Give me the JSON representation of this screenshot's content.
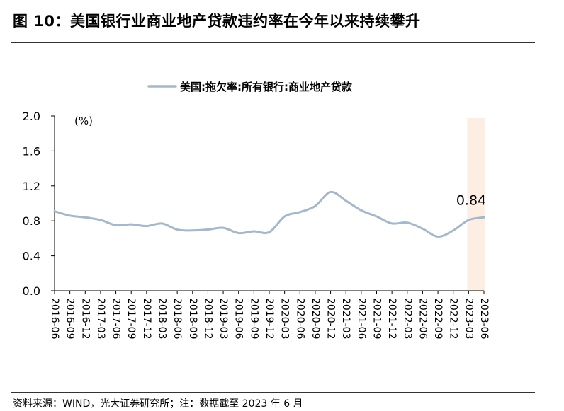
{
  "figure": {
    "title": "图 10：美国银行业商业地产贷款违约率在今年以来持续攀升",
    "source": "资料来源：WIND，光大证券研究所；注：数据截至 2023 年 6 月"
  },
  "colors": {
    "line": "#a3b8cc",
    "highlight_band": "#fdeee3",
    "axis": "#000000",
    "rule": "#333333"
  },
  "chart_data": {
    "type": "line",
    "title": "",
    "xlabel": "",
    "ylabel": "",
    "unit_label": "(%)",
    "ylim": [
      0,
      2.0
    ],
    "yticks": [
      "0.0",
      "0.4",
      "0.8",
      "1.2",
      "1.6",
      "2.0"
    ],
    "grid": false,
    "legend_position": "top-center",
    "categories": [
      "2016-06",
      "2016-09",
      "2016-12",
      "2017-03",
      "2017-06",
      "2017-09",
      "2017-12",
      "2018-03",
      "2018-06",
      "2018-09",
      "2018-12",
      "2019-03",
      "2019-06",
      "2019-09",
      "2019-12",
      "2020-03",
      "2020-06",
      "2020-09",
      "2020-12",
      "2021-03",
      "2021-06",
      "2021-09",
      "2021-12",
      "2022-03",
      "2022-06",
      "2022-09",
      "2022-12",
      "2023-03",
      "2023-06"
    ],
    "series": [
      {
        "name": "美国:拖欠率:所有银行:商业地产贷款",
        "values": [
          0.91,
          0.86,
          0.84,
          0.81,
          0.75,
          0.76,
          0.74,
          0.77,
          0.7,
          0.69,
          0.7,
          0.72,
          0.66,
          0.68,
          0.67,
          0.85,
          0.9,
          0.97,
          1.13,
          1.03,
          0.92,
          0.85,
          0.77,
          0.78,
          0.71,
          0.62,
          0.69,
          0.81,
          0.84
        ]
      }
    ],
    "highlight_range": [
      "2023-03",
      "2023-06"
    ],
    "annotations": [
      {
        "category": "2023-06",
        "text": "0.84"
      }
    ]
  }
}
